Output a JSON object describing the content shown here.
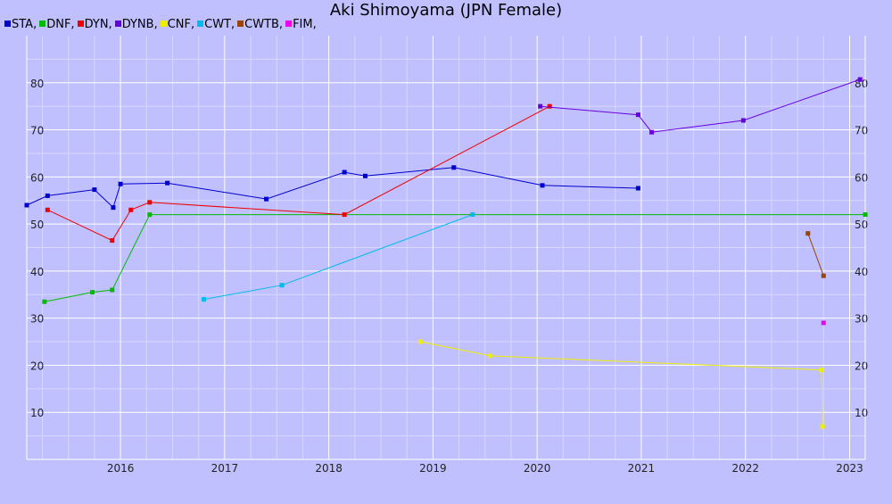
{
  "chart_data": {
    "type": "line",
    "title": "Aki Shimoyama (JPN Female)",
    "xlabel": "",
    "ylabel": "",
    "x_ticks": [
      "2016",
      "2017",
      "2018",
      "2019",
      "2020",
      "2021",
      "2022",
      "2023"
    ],
    "y_ticks": [
      10,
      20,
      30,
      40,
      50,
      60,
      70,
      80
    ],
    "xlim": [
      2015.1,
      2023.15
    ],
    "ylim": [
      0,
      90
    ],
    "grid": true,
    "legend_position": "top-left",
    "series": [
      {
        "name": "STA",
        "legend": "STA,",
        "color": "#0000cc",
        "points": [
          [
            2015.1,
            54
          ],
          [
            2015.3,
            56
          ],
          [
            2015.75,
            57.3
          ],
          [
            2015.93,
            53.5
          ],
          [
            2016.0,
            58.5
          ],
          [
            2016.45,
            58.7
          ],
          [
            2017.4,
            55.3
          ],
          [
            2018.15,
            61
          ],
          [
            2018.35,
            60.2
          ],
          [
            2019.2,
            62
          ],
          [
            2020.05,
            58.2
          ],
          [
            2020.97,
            57.6
          ]
        ]
      },
      {
        "name": "DNF",
        "legend": "DNF,",
        "color": "#00bb00",
        "points": [
          [
            2015.27,
            33.5
          ],
          [
            2015.73,
            35.5
          ],
          [
            2015.92,
            36
          ],
          [
            2016.28,
            52
          ],
          [
            2023.15,
            52
          ]
        ]
      },
      {
        "name": "DYN",
        "legend": "DYN,",
        "color": "#ee0000",
        "points": [
          [
            2015.3,
            53
          ],
          [
            2015.92,
            46.5
          ],
          [
            2016.1,
            53
          ],
          [
            2016.28,
            54.6
          ],
          [
            2018.15,
            52
          ],
          [
            2020.12,
            75
          ]
        ]
      },
      {
        "name": "DYNB",
        "legend": "DYNB,",
        "color": "#6600dd",
        "points": [
          [
            2020.03,
            75
          ],
          [
            2020.97,
            73.2
          ],
          [
            2021.1,
            69.5
          ],
          [
            2021.98,
            72
          ],
          [
            2023.1,
            80.7
          ]
        ]
      },
      {
        "name": "CNF",
        "legend": "CNF,",
        "color": "#eeee00",
        "points": [
          [
            2018.88,
            25
          ],
          [
            2019.55,
            22
          ],
          [
            2022.73,
            19
          ],
          [
            2022.74,
            7
          ]
        ]
      },
      {
        "name": "CWT",
        "legend": "CWT,",
        "color": "#00bbee",
        "points": [
          [
            2016.8,
            34
          ],
          [
            2017.55,
            37
          ],
          [
            2019.38,
            52
          ]
        ]
      },
      {
        "name": "CWTB",
        "legend": "CWTB,",
        "color": "#994400",
        "points": [
          [
            2022.6,
            48
          ],
          [
            2022.75,
            39
          ]
        ]
      },
      {
        "name": "FIM",
        "legend": "FIM,",
        "color": "#ee00ee",
        "points": [
          [
            2022.75,
            29
          ]
        ]
      }
    ]
  }
}
